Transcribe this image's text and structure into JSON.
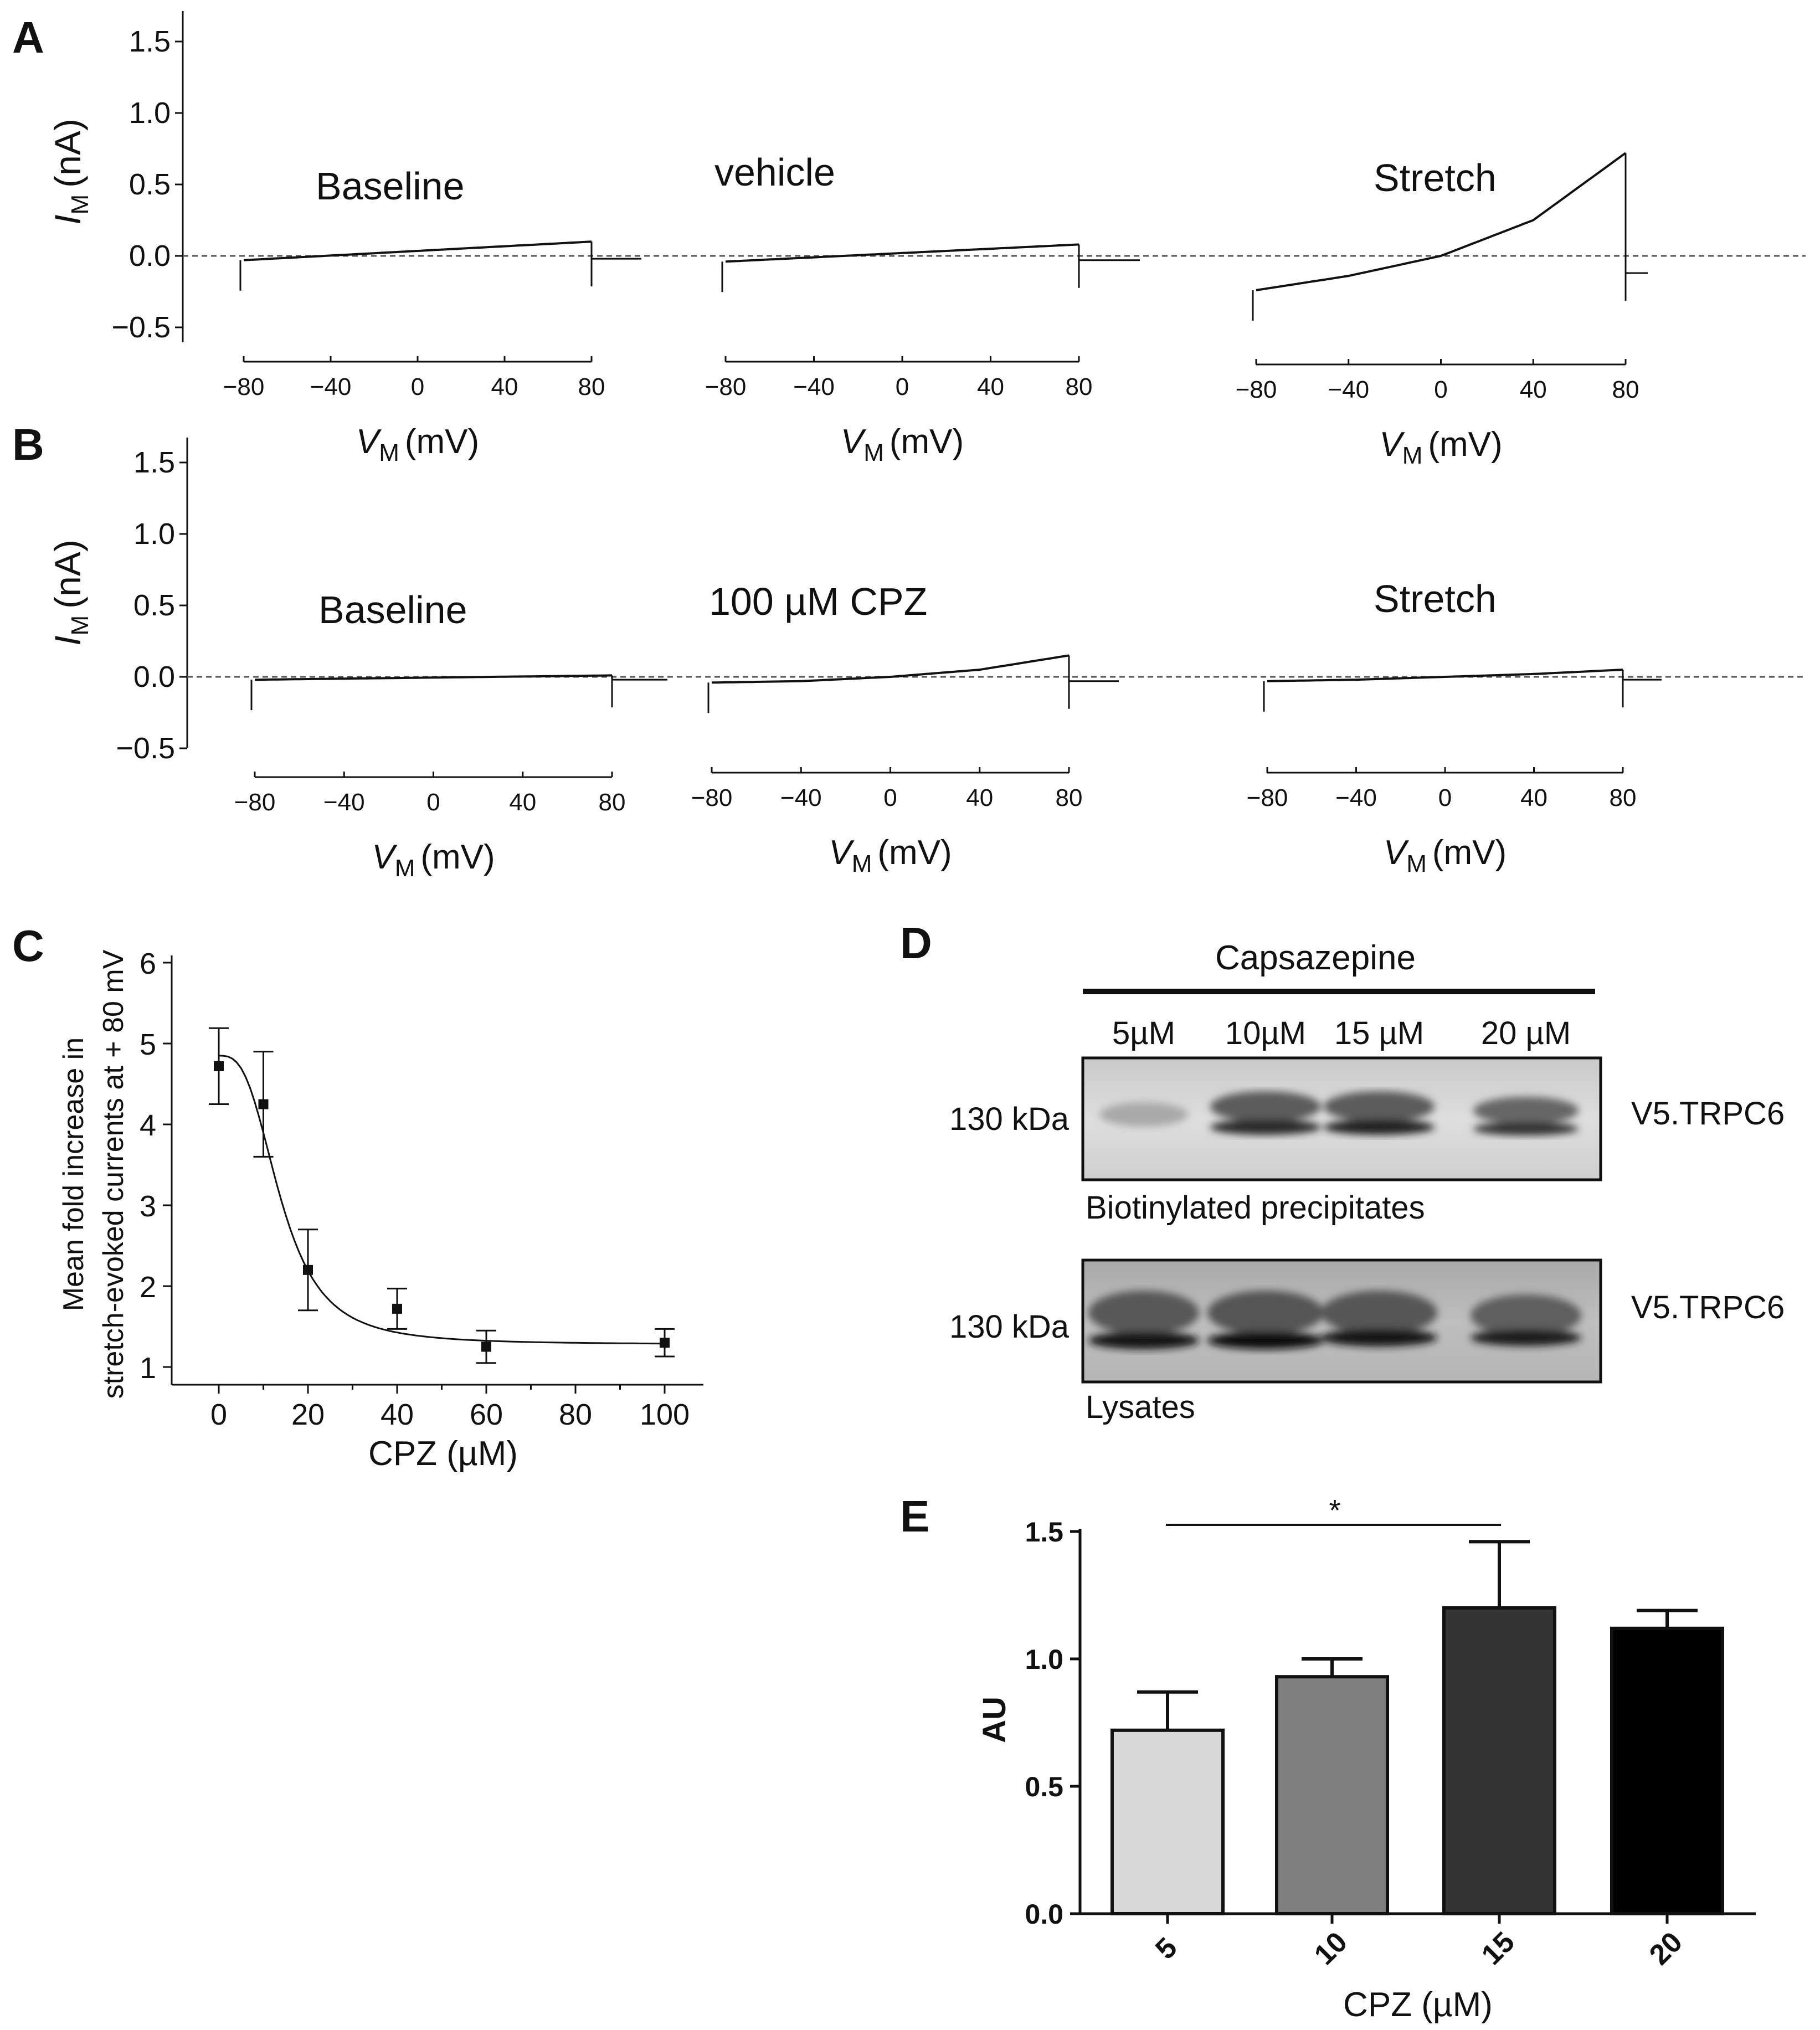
{
  "panel_letters": {
    "A": "A",
    "B": "B",
    "C": "C",
    "D": "D",
    "E": "E"
  },
  "colors": {
    "ink": "#111111",
    "zero_line": "#555555",
    "bar_5": "#d8d8d8",
    "bar_10": "#7f7f7f",
    "bar_15": "#333333",
    "bar_20": "#000000"
  },
  "chart_data": [
    {
      "id": "A",
      "type": "line",
      "ylabel_main": "I",
      "ylabel_sub": "M",
      "ylabel_unit": "(nA)",
      "y_ticks": [
        "1.5",
        "1.0",
        "0.5",
        "0.0",
        "−0.5"
      ],
      "ylim": [
        -0.5,
        1.5
      ],
      "x_ticks": [
        "−80",
        "−40",
        "0",
        "40",
        "80"
      ],
      "xlabel_main": "V",
      "xlabel_sub": "M",
      "xlabel_unit": "(mV)",
      "reference_line": 0.0,
      "series": [
        {
          "label": "Baseline",
          "x": [
            -80,
            80
          ],
          "y": [
            -0.03,
            0.1
          ],
          "holding": -0.02
        },
        {
          "label": "vehicle",
          "x": [
            -80,
            80
          ],
          "y": [
            -0.04,
            0.08
          ],
          "holding": -0.03
        },
        {
          "label": "Stretch",
          "x": [
            -80,
            -40,
            0,
            40,
            80
          ],
          "y": [
            -0.24,
            -0.14,
            0.0,
            0.25,
            0.72
          ],
          "holding": -0.12
        }
      ]
    },
    {
      "id": "B",
      "type": "line",
      "ylabel_main": "I",
      "ylabel_sub": "M",
      "ylabel_unit": "(nA)",
      "y_ticks": [
        "1.5",
        "1.0",
        "0.5",
        "0.0",
        "−0.5"
      ],
      "ylim": [
        -0.5,
        1.5
      ],
      "x_ticks": [
        "−80",
        "−40",
        "0",
        "40",
        "80"
      ],
      "xlabel_main": "V",
      "xlabel_sub": "M",
      "xlabel_unit": "(mV)",
      "reference_line": 0.0,
      "series": [
        {
          "label": "Baseline",
          "x": [
            -80,
            80
          ],
          "y": [
            -0.02,
            0.01
          ],
          "holding": -0.02
        },
        {
          "label": "100 µM CPZ",
          "x": [
            -80,
            -40,
            0,
            40,
            80
          ],
          "y": [
            -0.04,
            -0.03,
            0.0,
            0.05,
            0.15
          ],
          "holding": -0.03
        },
        {
          "label": "Stretch",
          "x": [
            -80,
            -40,
            0,
            40,
            80
          ],
          "y": [
            -0.03,
            -0.02,
            0.0,
            0.02,
            0.05
          ],
          "holding": -0.02
        }
      ]
    },
    {
      "id": "C",
      "type": "scatter",
      "ylabel_lines": [
        "Mean fold increase in",
        "stretch-evoked currents at + 80 mV"
      ],
      "xlabel": "CPZ (µM)",
      "y_ticks": [
        "1",
        "2",
        "3",
        "4",
        "5",
        "6"
      ],
      "x_ticks": [
        "0",
        "20",
        "40",
        "60",
        "80",
        "100"
      ],
      "ylim": [
        0.8,
        6
      ],
      "xlim": [
        -10,
        108
      ],
      "points": [
        {
          "x": 0,
          "y": 4.72,
          "err": 0.47
        },
        {
          "x": 10,
          "y": 4.25,
          "err": 0.65
        },
        {
          "x": 20,
          "y": 2.2,
          "err": 0.5
        },
        {
          "x": 40,
          "y": 1.72,
          "err": 0.25
        },
        {
          "x": 60,
          "y": 1.25,
          "err": 0.2
        },
        {
          "x": 100,
          "y": 1.3,
          "err": 0.17
        }
      ],
      "fit": {
        "top": 4.85,
        "bottom": 1.28,
        "ic50": 14,
        "hill": 3
      }
    },
    {
      "id": "E",
      "type": "bar",
      "ylabel": "AU",
      "xlabel": "CPZ (µM)",
      "categories": [
        "5",
        "10",
        "15",
        "20"
      ],
      "values": [
        0.72,
        0.93,
        1.2,
        1.12
      ],
      "errors": [
        0.15,
        0.07,
        0.26,
        0.07
      ],
      "y_ticks": [
        "0.0",
        "0.5",
        "1.0",
        "1.5"
      ],
      "ylim": [
        0,
        1.5
      ],
      "significance": {
        "from": "5",
        "to": "15",
        "label": "*"
      }
    }
  ],
  "blot": {
    "header": "Capsazepine",
    "lanes": [
      "5µM",
      "10µM",
      "15 µM",
      "20 µM"
    ],
    "upper": {
      "marker": "130 kDa",
      "protein": "V5.TRPC6",
      "caption": "Biotinylated precipitates"
    },
    "lower": {
      "marker": "130 kDa",
      "protein": "V5.TRPC6",
      "caption": "Lysates"
    }
  }
}
